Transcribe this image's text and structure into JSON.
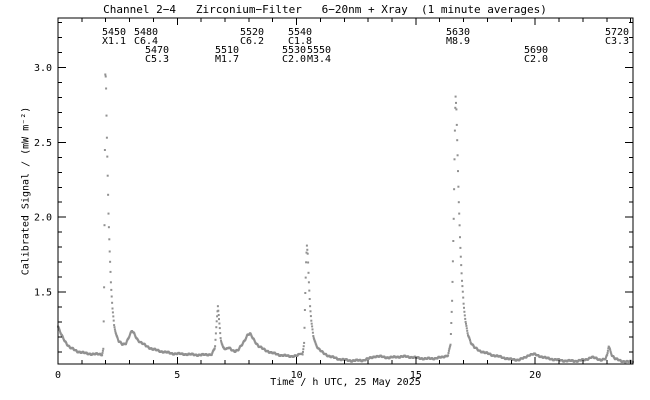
{
  "chart_data": {
    "type": "scatter",
    "title": "Channel 2−4   Zirconium−Filter   6−20nm + Xray  (1 minute averages)",
    "xlabel": "Time / h UTC, 25 May 2025",
    "ylabel": "Calibrated Signal / (mW m⁻²)",
    "xlim": [
      0,
      24.1
    ],
    "ylim": [
      1.02,
      3.33
    ],
    "xticks_major": [
      0,
      5,
      10,
      15,
      20
    ],
    "yticks_major": [
      1.5,
      2.0,
      2.5,
      3.0
    ],
    "x_minor_step_hours": 1,
    "y_minor_step": 0.1,
    "grid": "off",
    "legend": "none",
    "point_color": "#919191",
    "axis_color": "#000000",
    "background_color": "#ffffff",
    "sampling": "1 minute averages interpolated from keypoints",
    "annotations": [
      {
        "region": "5450",
        "class": "X1.1",
        "hour": 2.35,
        "row": 1
      },
      {
        "region": "5480",
        "class": "C6.4",
        "hour": 3.69,
        "row": 1
      },
      {
        "region": "5470",
        "class": "C5.3",
        "hour": 4.15,
        "row": 2
      },
      {
        "region": "5510",
        "class": "M1.7",
        "hour": 7.08,
        "row": 2
      },
      {
        "region": "5520",
        "class": "C6.2",
        "hour": 8.13,
        "row": 1
      },
      {
        "region": "5530",
        "class": "C2.0",
        "hour": 9.89,
        "row": 2
      },
      {
        "region": "5540",
        "class": "C1.8",
        "hour": 10.14,
        "row": 1
      },
      {
        "region": "5550",
        "class": "M3.4",
        "hour": 10.94,
        "row": 2
      },
      {
        "region": "5630",
        "class": "M8.9",
        "hour": 16.76,
        "row": 1
      },
      {
        "region": "5690",
        "class": "C2.0",
        "hour": 20.03,
        "row": 2
      },
      {
        "region": "5720",
        "class": "C3.3",
        "hour": 23.43,
        "row": 1
      }
    ],
    "series_keypoints": [
      [
        0.0,
        1.27
      ],
      [
        0.15,
        1.21
      ],
      [
        0.3,
        1.17
      ],
      [
        0.5,
        1.13
      ],
      [
        0.8,
        1.105
      ],
      [
        1.2,
        1.09
      ],
      [
        1.6,
        1.085
      ],
      [
        1.85,
        1.085
      ],
      [
        1.9,
        1.12
      ],
      [
        1.93,
        1.45
      ],
      [
        1.96,
        2.2
      ],
      [
        1.98,
        2.96
      ],
      [
        2.01,
        2.93
      ],
      [
        2.04,
        2.6
      ],
      [
        2.08,
        2.3
      ],
      [
        2.12,
        2.0
      ],
      [
        2.17,
        1.75
      ],
      [
        2.22,
        1.55
      ],
      [
        2.28,
        1.4
      ],
      [
        2.35,
        1.28
      ],
      [
        2.45,
        1.21
      ],
      [
        2.55,
        1.17
      ],
      [
        2.7,
        1.15
      ],
      [
        2.85,
        1.16
      ],
      [
        3.0,
        1.21
      ],
      [
        3.1,
        1.24
      ],
      [
        3.2,
        1.22
      ],
      [
        3.35,
        1.18
      ],
      [
        3.5,
        1.16
      ],
      [
        3.7,
        1.14
      ],
      [
        3.95,
        1.12
      ],
      [
        4.3,
        1.105
      ],
      [
        4.8,
        1.09
      ],
      [
        5.4,
        1.085
      ],
      [
        6.0,
        1.08
      ],
      [
        6.45,
        1.085
      ],
      [
        6.58,
        1.13
      ],
      [
        6.65,
        1.3
      ],
      [
        6.7,
        1.41
      ],
      [
        6.75,
        1.32
      ],
      [
        6.82,
        1.19
      ],
      [
        6.92,
        1.13
      ],
      [
        7.05,
        1.115
      ],
      [
        7.15,
        1.13
      ],
      [
        7.25,
        1.12
      ],
      [
        7.4,
        1.105
      ],
      [
        7.55,
        1.11
      ],
      [
        7.75,
        1.16
      ],
      [
        7.95,
        1.215
      ],
      [
        8.05,
        1.22
      ],
      [
        8.2,
        1.185
      ],
      [
        8.4,
        1.14
      ],
      [
        8.65,
        1.115
      ],
      [
        8.95,
        1.095
      ],
      [
        9.3,
        1.08
      ],
      [
        9.7,
        1.072
      ],
      [
        10.05,
        1.075
      ],
      [
        10.15,
        1.09
      ],
      [
        10.25,
        1.085
      ],
      [
        10.32,
        1.17
      ],
      [
        10.36,
        1.45
      ],
      [
        10.4,
        1.7
      ],
      [
        10.43,
        1.82
      ],
      [
        10.47,
        1.75
      ],
      [
        10.51,
        1.58
      ],
      [
        10.56,
        1.42
      ],
      [
        10.62,
        1.3
      ],
      [
        10.7,
        1.21
      ],
      [
        10.8,
        1.155
      ],
      [
        10.92,
        1.12
      ],
      [
        11.1,
        1.095
      ],
      [
        11.4,
        1.07
      ],
      [
        11.8,
        1.052
      ],
      [
        12.3,
        1.042
      ],
      [
        12.8,
        1.045
      ],
      [
        13.1,
        1.06
      ],
      [
        13.3,
        1.072
      ],
      [
        13.6,
        1.068
      ],
      [
        13.9,
        1.062
      ],
      [
        14.2,
        1.068
      ],
      [
        14.6,
        1.07
      ],
      [
        15.0,
        1.062
      ],
      [
        15.4,
        1.055
      ],
      [
        15.8,
        1.058
      ],
      [
        16.1,
        1.065
      ],
      [
        16.35,
        1.08
      ],
      [
        16.45,
        1.15
      ],
      [
        16.52,
        1.45
      ],
      [
        16.58,
        1.95
      ],
      [
        16.63,
        2.55
      ],
      [
        16.66,
        2.82
      ],
      [
        16.7,
        2.72
      ],
      [
        16.75,
        2.42
      ],
      [
        16.8,
        2.1
      ],
      [
        16.86,
        1.82
      ],
      [
        16.93,
        1.58
      ],
      [
        17.0,
        1.42
      ],
      [
        17.08,
        1.3
      ],
      [
        17.18,
        1.22
      ],
      [
        17.3,
        1.165
      ],
      [
        17.45,
        1.13
      ],
      [
        17.65,
        1.11
      ],
      [
        17.9,
        1.095
      ],
      [
        18.2,
        1.08
      ],
      [
        18.6,
        1.065
      ],
      [
        19.0,
        1.05
      ],
      [
        19.3,
        1.048
      ],
      [
        19.55,
        1.06
      ],
      [
        19.75,
        1.082
      ],
      [
        19.95,
        1.085
      ],
      [
        20.15,
        1.075
      ],
      [
        20.45,
        1.06
      ],
      [
        20.8,
        1.05
      ],
      [
        21.2,
        1.042
      ],
      [
        21.7,
        1.04
      ],
      [
        22.1,
        1.048
      ],
      [
        22.35,
        1.065
      ],
      [
        22.55,
        1.058
      ],
      [
        22.75,
        1.048
      ],
      [
        22.95,
        1.052
      ],
      [
        23.02,
        1.08
      ],
      [
        23.08,
        1.14
      ],
      [
        23.14,
        1.115
      ],
      [
        23.22,
        1.08
      ],
      [
        23.35,
        1.055
      ],
      [
        23.6,
        1.04
      ],
      [
        23.9,
        1.035
      ],
      [
        24.1,
        1.035
      ]
    ]
  }
}
